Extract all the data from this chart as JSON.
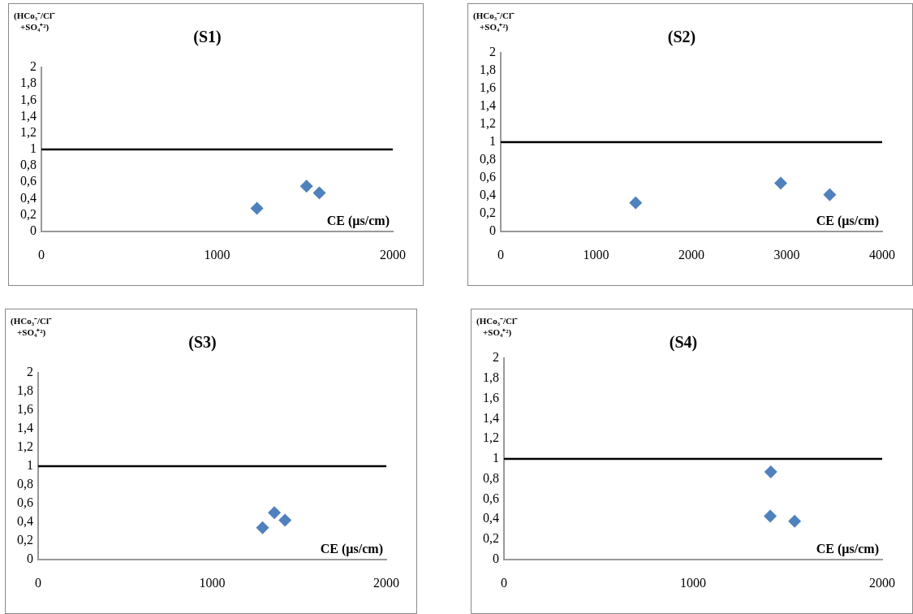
{
  "chart_data": [
    {
      "type": "scatter",
      "title": "(S1)",
      "xlabel": "CE (µs/cm)",
      "ylabel": "(HCo₃⁻/Cl⁻ +SO₄⁺²)",
      "x": [
        1227,
        1509,
        1582
      ],
      "series": [
        {
          "color": "#4f81bd",
          "values": [
            0.28,
            0.55,
            0.47
          ]
        }
      ],
      "xlim": [
        0,
        2000
      ],
      "xticks": [
        0,
        1000,
        2000
      ],
      "ylim": [
        0,
        2
      ],
      "yticks": [
        0,
        {
          "value": 0.2,
          "label": "0,2"
        },
        {
          "value": 0.4,
          "label": "0,4"
        },
        {
          "value": 0.6,
          "label": "0,6"
        },
        {
          "value": 0.8,
          "label": "0,8"
        },
        1,
        {
          "value": 1.2,
          "label": "1,2"
        },
        {
          "value": 1.4,
          "label": "1,4"
        },
        {
          "value": 1.6,
          "label": "1,6"
        },
        {
          "value": 1.8,
          "label": "1,8"
        },
        2
      ],
      "ref_lines": [
        {
          "axis": "y",
          "value": 1,
          "color": "#000000"
        }
      ],
      "grid": false,
      "legend": false,
      "marker": "diamond"
    },
    {
      "type": "scatter",
      "title": "(S2)",
      "xlabel": "CE (µs/cm)",
      "ylabel": "(HCo₃⁻/Cl⁻ +SO₄⁺²)",
      "x": [
        1415,
        2936,
        3450
      ],
      "series": [
        {
          "color": "#4f81bd",
          "values": [
            0.32,
            0.54,
            0.41
          ]
        }
      ],
      "xlim": [
        0,
        4000
      ],
      "xticks": [
        0,
        1000,
        2000,
        3000,
        4000
      ],
      "ylim": [
        0,
        2
      ],
      "yticks": [
        0,
        {
          "value": 0.2,
          "label": "0,2"
        },
        {
          "value": 0.4,
          "label": "0,4"
        },
        {
          "value": 0.6,
          "label": "0,6"
        },
        {
          "value": 0.8,
          "label": "0,8"
        },
        1,
        {
          "value": 1.2,
          "label": "1,2"
        },
        {
          "value": 1.4,
          "label": "1,4"
        },
        {
          "value": 1.6,
          "label": "1,6"
        },
        {
          "value": 1.8,
          "label": "1,8"
        },
        2
      ],
      "ref_lines": [
        {
          "axis": "y",
          "value": 1,
          "color": "#000000"
        }
      ],
      "grid": false,
      "legend": false,
      "marker": "diamond"
    },
    {
      "type": "scatter",
      "title": "(S3)",
      "xlabel": "CE (µs/cm)",
      "ylabel": "(HCo₃⁻/Cl⁻ +SO₄⁺²)",
      "x": [
        1289,
        1357,
        1418
      ],
      "series": [
        {
          "color": "#4f81bd",
          "values": [
            0.34,
            0.5,
            0.42
          ]
        }
      ],
      "xlim": [
        0,
        2000
      ],
      "xticks": [
        0,
        1000,
        2000
      ],
      "ylim": [
        0,
        2
      ],
      "yticks": [
        0,
        {
          "value": 0.2,
          "label": "0,2"
        },
        {
          "value": 0.4,
          "label": "0,4"
        },
        {
          "value": 0.6,
          "label": "0,6"
        },
        {
          "value": 0.8,
          "label": "0,8"
        },
        1,
        {
          "value": 1.2,
          "label": "1,2"
        },
        {
          "value": 1.4,
          "label": "1,4"
        },
        {
          "value": 1.6,
          "label": "1,6"
        },
        {
          "value": 1.8,
          "label": "1,8"
        },
        2
      ],
      "ref_lines": [
        {
          "axis": "y",
          "value": 1,
          "color": "#000000"
        }
      ],
      "grid": false,
      "legend": false,
      "marker": "diamond"
    },
    {
      "type": "scatter",
      "title": "(S4)",
      "xlabel": "CE (µs/cm)",
      "ylabel": "(HCo₃⁻/Cl⁻ +SO₄⁺²)",
      "x": [
        1411,
        1408,
        1537
      ],
      "series": [
        {
          "color": "#4f81bd",
          "values": [
            0.87,
            0.43,
            0.38
          ]
        }
      ],
      "xlim": [
        0,
        2000
      ],
      "xticks": [
        0,
        1000,
        2000
      ],
      "ylim": [
        0,
        2
      ],
      "yticks": [
        0,
        {
          "value": 0.2,
          "label": "0,2"
        },
        {
          "value": 0.4,
          "label": "0,4"
        },
        {
          "value": 0.6,
          "label": "0,6"
        },
        {
          "value": 0.8,
          "label": "0,8"
        },
        1,
        {
          "value": 1.2,
          "label": "1,2"
        },
        {
          "value": 1.4,
          "label": "1,4"
        },
        {
          "value": 1.6,
          "label": "1,6"
        },
        {
          "value": 1.8,
          "label": "1,8"
        },
        2
      ],
      "ref_lines": [
        {
          "axis": "y",
          "value": 1,
          "color": "#000000"
        }
      ],
      "grid": false,
      "legend": false,
      "marker": "diamond"
    }
  ]
}
